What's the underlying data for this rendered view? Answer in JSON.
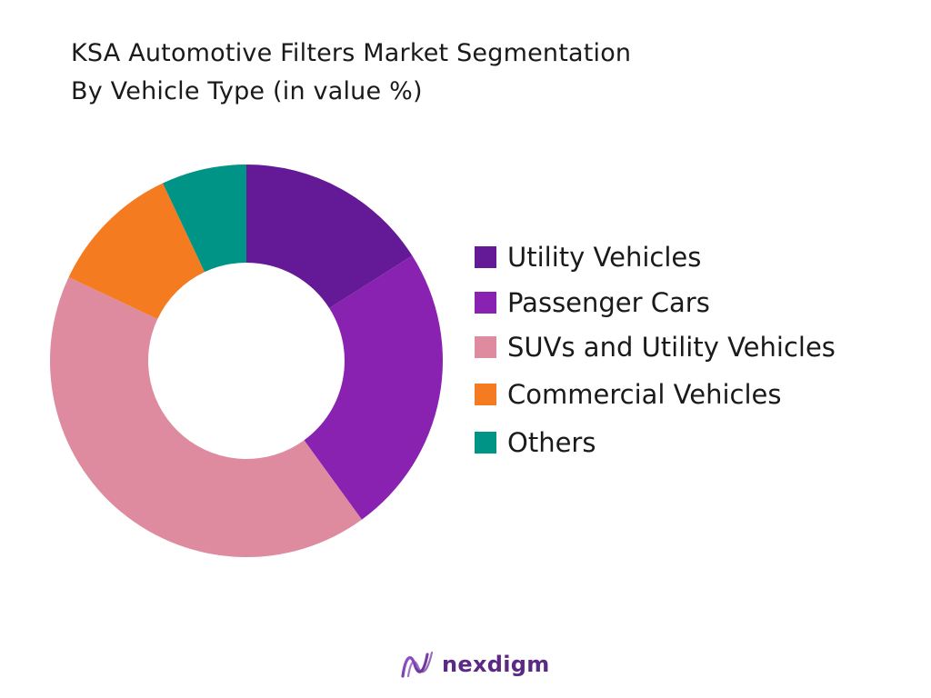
{
  "colors": {
    "utility": "#641A96",
    "passenger": "#8A22B1",
    "suv": "#DE8BA0",
    "commercial": "#F47B20",
    "others": "#009487",
    "brand": "#5B2A86"
  },
  "chart_data": {
    "type": "donut",
    "title": "KSA Automotive Filters Market Segmentation",
    "subtitle": "By Vehicle Type (in value %)",
    "categories": [
      "Utility Vehicles",
      "Passenger Cars",
      "SUVs and Utility Vehicles",
      "Commercial Vehicles",
      "Others"
    ],
    "values": [
      16,
      24,
      42,
      11,
      7
    ],
    "legend_position": "right"
  },
  "legend": [
    {
      "label": "Utility Vehicles"
    },
    {
      "label": "Passenger Cars"
    },
    {
      "label": "SUVs and Utility Vehicles"
    },
    {
      "label": "Commercial Vehicles"
    },
    {
      "label": "Others"
    }
  ],
  "brand": {
    "name": "nexdigm",
    "logo_icon": "nexdigm-wave-logo-icon"
  }
}
